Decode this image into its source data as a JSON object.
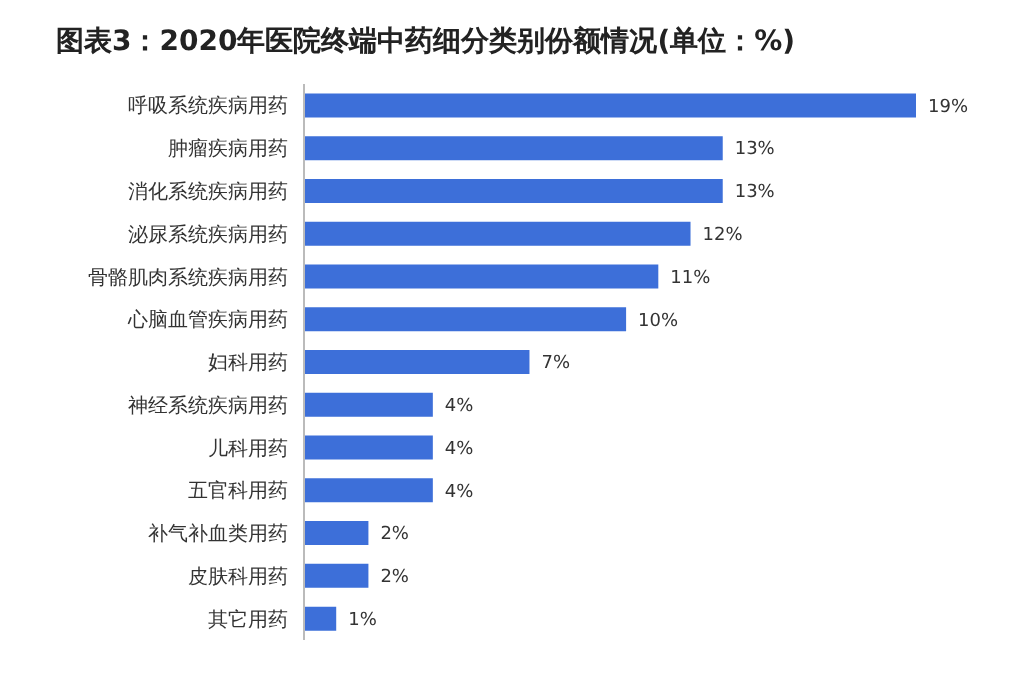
{
  "chart_data": {
    "type": "bar",
    "orientation": "horizontal",
    "title": "图表3：2020年医院终端中药细分类别份额情况(单位：%)",
    "categories": [
      "呼吸系统疾病用药",
      "肿瘤疾病用药",
      "消化系统疾病用药",
      "泌尿系统疾病用药",
      "骨骼肌肉系统疾病用药",
      "心脑血管疾病用药",
      "妇科用药",
      "神经系统疾病用药",
      "儿科用药",
      "五官科用药",
      "补气补血类用药",
      "皮肤科用药",
      "其它用药"
    ],
    "values": [
      19,
      13,
      13,
      12,
      11,
      10,
      7,
      4,
      4,
      4,
      2,
      2,
      1
    ],
    "value_labels": [
      "19%",
      "13%",
      "13%",
      "12%",
      "11%",
      "10%",
      "7%",
      "4%",
      "4%",
      "4%",
      "2%",
      "2%",
      "1%"
    ],
    "color": "#3d6fd9"
  }
}
